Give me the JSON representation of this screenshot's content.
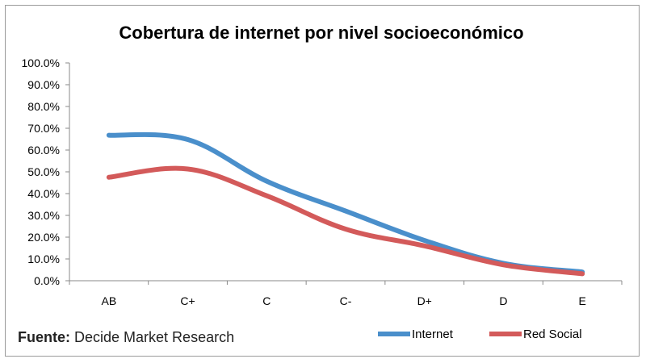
{
  "chart_data": {
    "type": "line",
    "title": "Cobertura de internet por nivel socioeconómico",
    "xlabel": "",
    "ylabel": "",
    "categories": [
      "AB",
      "C+",
      "C",
      "C-",
      "D+",
      "D",
      "E"
    ],
    "ylim": [
      0,
      100
    ],
    "y_ticks": [
      "0.0%",
      "10.0%",
      "20.0%",
      "30.0%",
      "40.0%",
      "50.0%",
      "60.0%",
      "70.0%",
      "80.0%",
      "90.0%",
      "100.0%"
    ],
    "grid": false,
    "smooth": true,
    "legend_position": "bottom-right",
    "series": [
      {
        "name": "Internet",
        "color": "#4a8fcb",
        "values": [
          66.8,
          64.8,
          45.7,
          32.0,
          18.5,
          8.0,
          4.0
        ]
      },
      {
        "name": "Red Social",
        "color": "#d35a5a",
        "values": [
          47.5,
          51.3,
          39.0,
          23.7,
          16.0,
          7.3,
          3.2
        ]
      }
    ]
  },
  "footer": {
    "source_label": "Fuente:",
    "source_text": "Decide  Market Research"
  }
}
